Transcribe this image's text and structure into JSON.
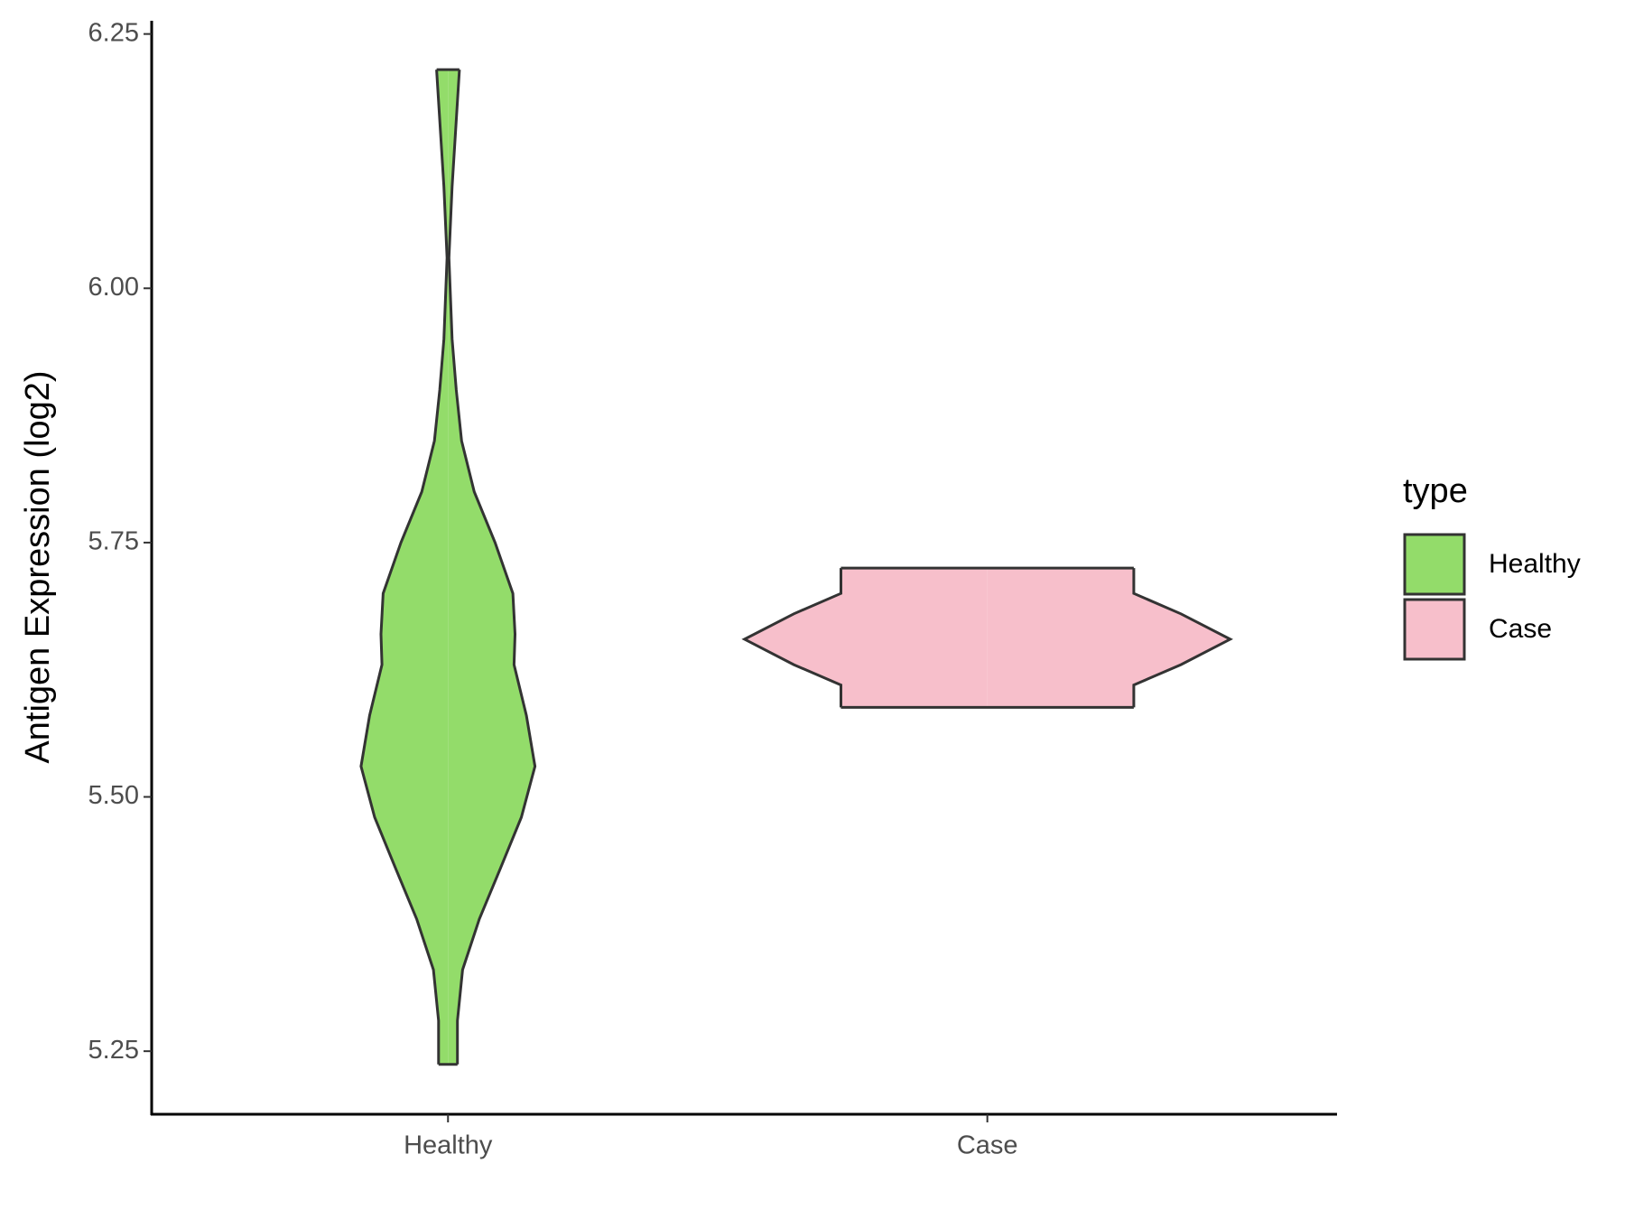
{
  "chart_data": {
    "type": "violin",
    "y_label": "Antigen Expression (log2)",
    "categories": [
      "Healthy",
      "Case"
    ],
    "legend_title": "type",
    "ylim": [
      5.188,
      6.263
    ],
    "yticks": [
      5.25,
      {
        "value": 5.5,
        "label": "5.50"
      },
      5.75,
      {
        "value": 6,
        "label": "6.00"
      },
      6.25
    ],
    "series": [
      {
        "name": "Healthy",
        "color": "#93dc6a",
        "y": [
          6.215,
          6.1,
          6.03,
          5.95,
          5.9,
          5.85,
          5.8,
          5.75,
          5.7,
          5.66,
          5.63,
          5.58,
          5.53,
          5.48,
          5.43,
          5.38,
          5.33,
          5.28,
          5.237
        ],
        "width": [
          0.047,
          0.017,
          0.004,
          0.017,
          0.034,
          0.056,
          0.108,
          0.194,
          0.267,
          0.276,
          0.272,
          0.323,
          0.358,
          0.302,
          0.216,
          0.129,
          0.06,
          0.039,
          0.039
        ]
      },
      {
        "name": "Case",
        "color": "#f7bfcb",
        "y": [
          5.725,
          5.7,
          5.68,
          5.655,
          5.63,
          5.61,
          5.588
        ],
        "width": [
          0.603,
          0.603,
          0.797,
          1,
          0.797,
          0.603,
          0.603
        ]
      }
    ]
  }
}
